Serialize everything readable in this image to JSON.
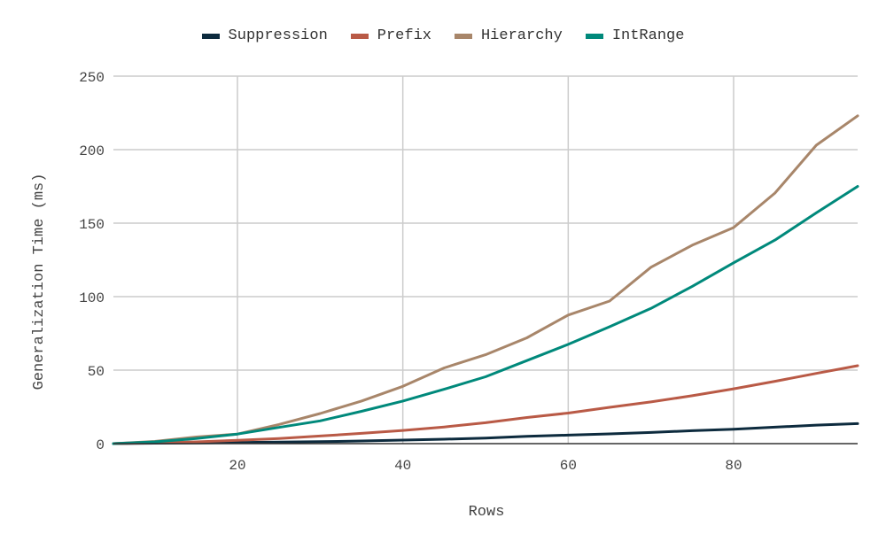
{
  "chart_data": {
    "type": "line",
    "xlabel": "Rows",
    "ylabel": "Generalization Time (ms)",
    "xlim": [
      5,
      95
    ],
    "ylim": [
      0,
      250
    ],
    "xticks": [
      20,
      40,
      60,
      80
    ],
    "yticks": [
      0,
      50,
      100,
      150,
      200,
      250
    ],
    "grid": true,
    "legend_position": "top",
    "x": [
      5,
      10,
      15,
      20,
      25,
      30,
      35,
      40,
      45,
      50,
      55,
      60,
      65,
      70,
      75,
      80,
      85,
      90,
      95
    ],
    "series": [
      {
        "name": "Suppression",
        "color": "#0d2b3e",
        "values": [
          0,
          0.3,
          0.5,
          0.8,
          1.0,
          1.3,
          1.8,
          2.4,
          3.0,
          3.8,
          5.0,
          5.8,
          6.6,
          7.6,
          8.8,
          9.8,
          11.2,
          12.6,
          13.6
        ]
      },
      {
        "name": "Prefix",
        "color": "#b95a46",
        "values": [
          0,
          0.6,
          1.2,
          2.2,
          3.5,
          5.2,
          7.0,
          9.0,
          11.3,
          14.2,
          17.8,
          20.8,
          24.7,
          28.4,
          32.6,
          37.3,
          42.4,
          47.8,
          53.0
        ]
      },
      {
        "name": "Hierarchy",
        "color": "#a8866a",
        "values": [
          0,
          1.5,
          4.5,
          6.5,
          13.0,
          20.5,
          29.0,
          39.0,
          51.5,
          60.5,
          72.0,
          87.5,
          97.0,
          120.0,
          135.0,
          147.0,
          170.5,
          203.0,
          223.0
        ]
      },
      {
        "name": "IntRange",
        "color": "#00897b",
        "values": [
          0,
          1.2,
          3.5,
          6.5,
          11.0,
          15.5,
          22.0,
          29.0,
          37.0,
          45.5,
          56.5,
          67.5,
          79.5,
          92.0,
          107.0,
          123.0,
          138.5,
          157.0,
          175.0
        ]
      }
    ]
  }
}
